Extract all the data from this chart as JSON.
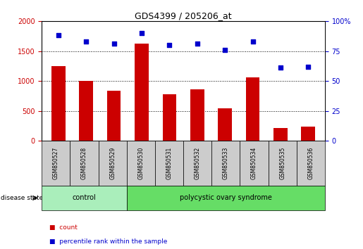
{
  "title": "GDS4399 / 205206_at",
  "samples": [
    "GSM850527",
    "GSM850528",
    "GSM850529",
    "GSM850530",
    "GSM850531",
    "GSM850532",
    "GSM850533",
    "GSM850534",
    "GSM850535",
    "GSM850536"
  ],
  "counts": [
    1250,
    1000,
    830,
    1620,
    775,
    860,
    540,
    1060,
    215,
    235
  ],
  "percentiles": [
    88,
    83,
    81,
    90,
    80,
    81,
    76,
    83,
    61,
    62
  ],
  "ylim_left": [
    0,
    2000
  ],
  "ylim_right": [
    0,
    100
  ],
  "yticks_left": [
    0,
    500,
    1000,
    1500,
    2000
  ],
  "ytick_labels_left": [
    "0",
    "500",
    "1000",
    "1500",
    "2000"
  ],
  "yticks_right": [
    0,
    25,
    50,
    75,
    100
  ],
  "ytick_labels_right": [
    "0",
    "25",
    "50",
    "75",
    "100%"
  ],
  "bar_color": "#cc0000",
  "dot_color": "#0000cc",
  "control_color": "#aaeebb",
  "pcos_color": "#66dd66",
  "cell_bg": "#cccccc",
  "groups": [
    {
      "label": "control",
      "start": 0,
      "end": 3
    },
    {
      "label": "polycystic ovary syndrome",
      "start": 3,
      "end": 10
    }
  ],
  "disease_state_label": "disease state",
  "legend_items": [
    {
      "color": "#cc0000",
      "label": "count"
    },
    {
      "color": "#0000cc",
      "label": "percentile rank within the sample"
    }
  ],
  "tick_label_color_left": "#cc0000",
  "tick_label_color_right": "#0000cc",
  "bar_width": 0.5
}
